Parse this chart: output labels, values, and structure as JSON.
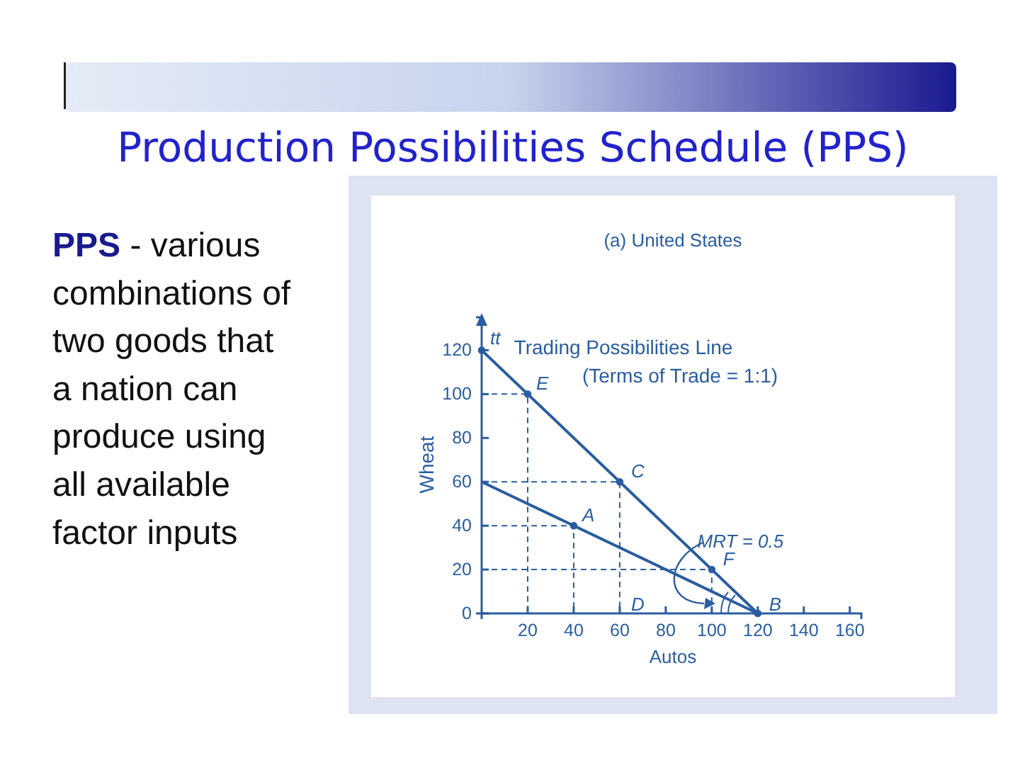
{
  "chart_data": {
    "type": "line",
    "title": "Production Possibilities Schedule (PPS)",
    "subtitle": "(a) United States",
    "xlabel": "Autos",
    "ylabel": "Wheat",
    "xlim": [
      0,
      165
    ],
    "xticks": [
      20,
      40,
      60,
      80,
      100,
      120,
      140,
      160
    ],
    "ylim": [
      0,
      135
    ],
    "yticks": [
      0,
      20,
      40,
      60,
      80,
      100,
      120
    ],
    "grid": false,
    "series": [
      {
        "color": "#2a5d9f",
        "x": [
          0,
          120
        ],
        "values": [
          120,
          0
        ],
        "line_style": "solid",
        "marker": "none"
      },
      {
        "type": "line",
        "color": "#2a5d9f",
        "x": [
          0,
          120
        ],
        "values": [
          60,
          0
        ],
        "line_style": "solid",
        "marker": "none"
      },
      {
        "type": "line",
        "color": "#2a5d9f",
        "x": [
          0,
          20,
          20
        ],
        "values": [
          100,
          100,
          0
        ],
        "line_style": "dashed",
        "marker": "none"
      },
      {
        "type": "line",
        "color": "#2a5d9f",
        "x": [
          0,
          60,
          60
        ],
        "values": [
          60,
          60,
          0
        ],
        "line_style": "dashed",
        "marker": "none"
      },
      {
        "type": "line",
        "color": "#2a5d9f",
        "x": [
          0,
          40,
          40
        ],
        "values": [
          40,
          40,
          0
        ],
        "line_style": "dashed",
        "marker": "none"
      },
      {
        "type": "line",
        "color": "#2a5d9f",
        "x": [
          0,
          100,
          100
        ],
        "values": [
          20,
          20,
          0
        ],
        "line_style": "dashed",
        "marker": "none"
      },
      {
        "type": "scatter",
        "color": "#2a5d9f",
        "x": [
          0,
          20,
          60,
          40,
          100,
          120
        ],
        "values": [
          120,
          100,
          60,
          40,
          20,
          0
        ],
        "marker": "circle"
      }
    ],
    "annotations": [
      "PPS - various combinations of two goods that a nation can produce using all available factor inputs",
      {
        "text": "tt",
        "x": 0,
        "y": 120
      },
      {
        "text": "E",
        "x": 20,
        "y": 100
      },
      {
        "text": "C",
        "x": 60,
        "y": 60
      },
      {
        "text": "A",
        "x": 40,
        "y": 40
      },
      {
        "text": "F",
        "x": 100,
        "y": 20
      },
      {
        "text": "B",
        "x": 120,
        "y": 0
      },
      {
        "text": "D",
        "x": 60,
        "y": 0
      },
      "Trading Possibilities Line",
      "(Terms of Trade = 1:1)",
      {
        "text": "MRT = 0.5",
        "x": 95,
        "y": 30
      }
    ]
  }
}
